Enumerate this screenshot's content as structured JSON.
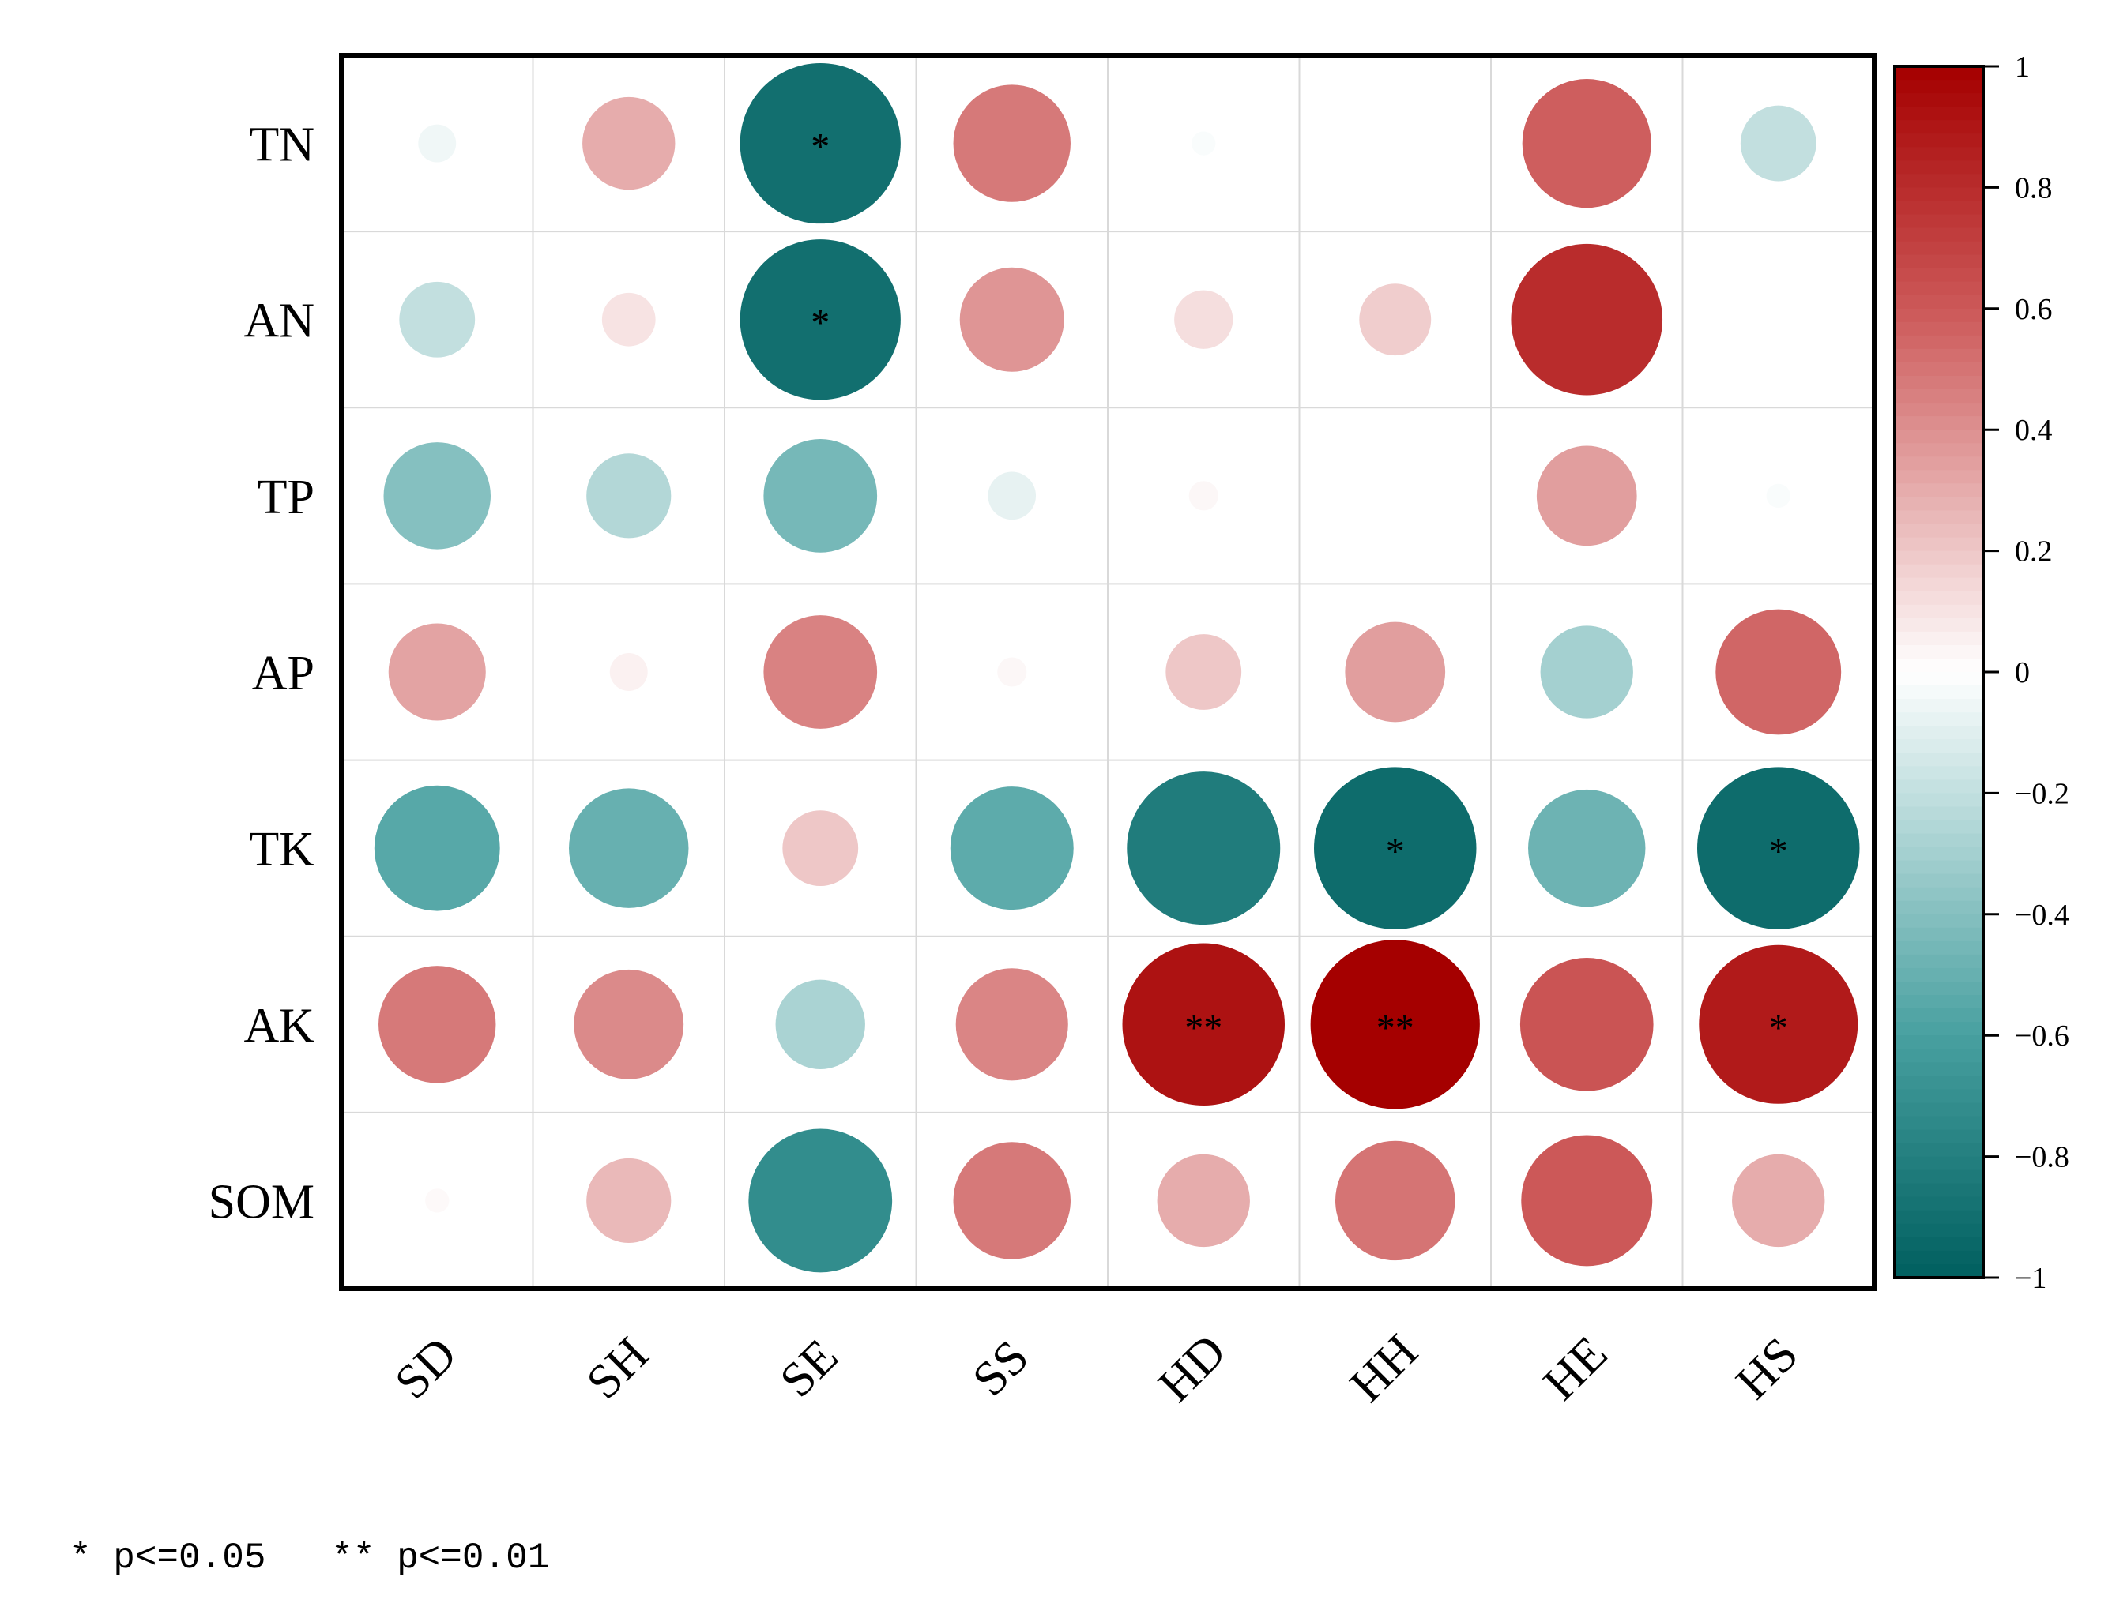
{
  "chart_data": {
    "type": "heatmap",
    "style": "circle-correlation-matrix",
    "rows": [
      "TN",
      "AN",
      "TP",
      "AP",
      "TK",
      "AK",
      "SOM"
    ],
    "columns": [
      "SD",
      "SH",
      "SE",
      "SS",
      "HD",
      "HH",
      "HE",
      "HS"
    ],
    "values": [
      [
        -0.05,
        0.3,
        -0.9,
        0.48,
        -0.02,
        0.0,
        0.58,
        -0.2
      ],
      [
        -0.2,
        0.1,
        -0.9,
        0.38,
        0.12,
        0.18,
        0.8,
        0.0
      ],
      [
        -0.4,
        -0.25,
        -0.45,
        -0.08,
        0.03,
        0.0,
        0.35,
        -0.02
      ],
      [
        0.33,
        0.05,
        0.45,
        0.03,
        0.2,
        0.35,
        -0.3,
        0.55
      ],
      [
        -0.55,
        -0.5,
        0.2,
        -0.53,
        -0.82,
        -0.92,
        -0.48,
        -0.92
      ],
      [
        0.48,
        0.42,
        -0.28,
        0.44,
        0.92,
        1.0,
        0.62,
        0.88
      ],
      [
        0.02,
        0.25,
        -0.72,
        0.48,
        0.3,
        0.5,
        0.6,
        0.3
      ]
    ],
    "significance": [
      [
        "",
        "",
        "*",
        "",
        "",
        "",
        "",
        ""
      ],
      [
        "",
        "",
        "*",
        "",
        "",
        "",
        "",
        ""
      ],
      [
        "",
        "",
        "",
        "",
        "",
        "",
        "",
        ""
      ],
      [
        "",
        "",
        "",
        "",
        "",
        "",
        "",
        ""
      ],
      [
        "",
        "",
        "",
        "",
        "",
        "*",
        "",
        "*"
      ],
      [
        "",
        "",
        "",
        "",
        "**",
        "**",
        "",
        "*"
      ],
      [
        "",
        "",
        "",
        "",
        "",
        "",
        "",
        ""
      ]
    ],
    "colorbar": {
      "range": [
        -1,
        1
      ],
      "ticks": [
        "1",
        "0.8",
        "0.6",
        "0.4",
        "0.2",
        "0",
        "−0.2",
        "−0.4",
        "−0.6",
        "−0.8",
        "−1"
      ],
      "tick_values": [
        1,
        0.8,
        0.6,
        0.4,
        0.2,
        0,
        -0.2,
        -0.4,
        -0.6,
        -0.8,
        -1
      ],
      "positive_color": "#a50000",
      "negative_color": "#005f5f",
      "mid_color": "#ffffff"
    },
    "legend_note": "* p<=0.05   ** p<=0.01"
  }
}
